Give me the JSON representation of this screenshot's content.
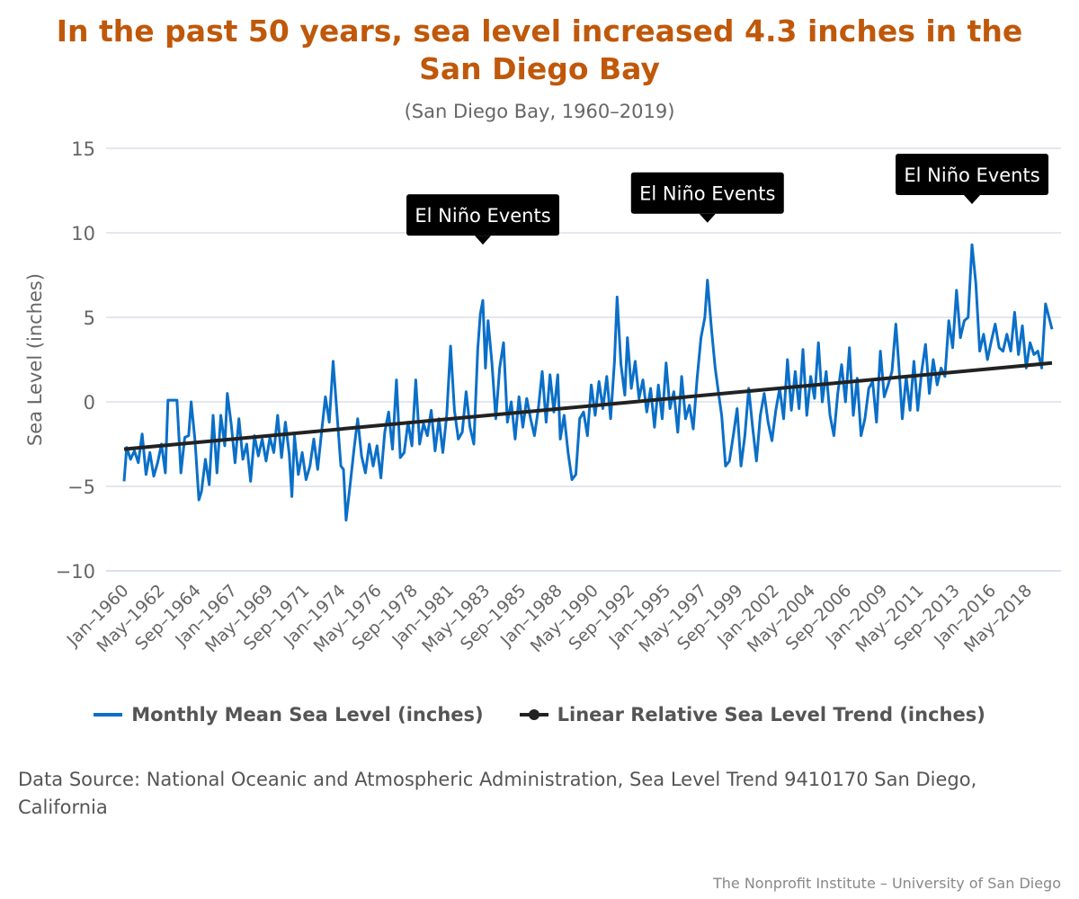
{
  "title": "In the past 50 years, sea level increased 4.3 inches in the San Diego Bay",
  "subtitle": "(San Diego Bay, 1960–2019)",
  "source_note": "Data Source: National Oceanic and Atmospheric Administration, Sea Level Trend 9410170 San Diego, California",
  "credit": "The Nonprofit Institute – University of San Diego",
  "colors": {
    "title": "#c0580a",
    "monthly_series": "#0a6fc8",
    "trend_series": "#222222",
    "grid": "#dddde8",
    "annotation_bg": "#000000"
  },
  "legend": {
    "placement": "bottom-center",
    "items": [
      {
        "label": "Monthly Mean Sea Level (inches)",
        "symbol": "line",
        "color": "#0a6fc8"
      },
      {
        "label": "Linear Relative Sea Level Trend (inches)",
        "symbol": "line-with-marker",
        "color": "#222222"
      }
    ]
  },
  "chart_data": {
    "type": "line",
    "title": "In the past 50 years, sea level increased 4.3 inches in the San Diego Bay",
    "subtitle": "(San Diego Bay, 1960–2019)",
    "ylabel": "Sea Level (inches)",
    "xlabel": "",
    "ylim": [
      -10,
      15
    ],
    "y_ticks": [
      -10,
      -5,
      0,
      5,
      10,
      15
    ],
    "grid": "horizontal",
    "x_range": [
      "Jan-1960",
      "Dec-2019"
    ],
    "x_tick_labels": [
      "Jan-1960",
      "May-1962",
      "Sep-1964",
      "Jan-1967",
      "May-1969",
      "Sep-1971",
      "Jan-1974",
      "May-1976",
      "Sep-1978",
      "Jan-1981",
      "May-1983",
      "Sep-1985",
      "Jan-1988",
      "May-1990",
      "Sep-1992",
      "Jan-1995",
      "May-1997",
      "Sep-1999",
      "Jan-2002",
      "May-2004",
      "Sep-2006",
      "Jan-2009",
      "May-2011",
      "Sep-2013",
      "Jan-2016",
      "May-2018"
    ],
    "series": [
      {
        "name": "Monthly Mean Sea Level (inches)",
        "color": "#0a6fc8",
        "points": [
          [
            "Jan-1960",
            -4.7
          ],
          [
            "Mar-1960",
            -2.7
          ],
          [
            "Jun-1960",
            -3.4
          ],
          [
            "Sep-1960",
            -2.9
          ],
          [
            "Dec-1960",
            -3.6
          ],
          [
            "Mar-1961",
            -1.9
          ],
          [
            "Jun-1961",
            -4.3
          ],
          [
            "Sep-1961",
            -3.0
          ],
          [
            "Dec-1961",
            -4.4
          ],
          [
            "Mar-1962",
            -3.6
          ],
          [
            "Jun-1962",
            -2.5
          ],
          [
            "Sep-1962",
            -4.2
          ],
          [
            "Nov-1962",
            0.1
          ],
          [
            "Jan-1963",
            0.1
          ],
          [
            "Mar-1963",
            0.1
          ],
          [
            "Jun-1963",
            0.1
          ],
          [
            "Sep-1963",
            -4.2
          ],
          [
            "Dec-1963",
            -2.1
          ],
          [
            "Mar-1964",
            -2.0
          ],
          [
            "May-1964",
            0.0
          ],
          [
            "Aug-1964",
            -2.3
          ],
          [
            "Nov-1964",
            -5.8
          ],
          [
            "Jan-1965",
            -5.3
          ],
          [
            "Apr-1965",
            -3.4
          ],
          [
            "Jul-1965",
            -4.9
          ],
          [
            "Oct-1965",
            -0.8
          ],
          [
            "Jan-1966",
            -4.2
          ],
          [
            "Apr-1966",
            -0.8
          ],
          [
            "Jul-1966",
            -2.6
          ],
          [
            "Sep-1966",
            0.5
          ],
          [
            "Dec-1966",
            -1.3
          ],
          [
            "Mar-1967",
            -3.6
          ],
          [
            "Jun-1967",
            -1.0
          ],
          [
            "Sep-1967",
            -3.4
          ],
          [
            "Dec-1967",
            -2.5
          ],
          [
            "Mar-1968",
            -4.7
          ],
          [
            "Jun-1968",
            -2.0
          ],
          [
            "Sep-1968",
            -3.2
          ],
          [
            "Dec-1968",
            -2.2
          ],
          [
            "Mar-1969",
            -3.5
          ],
          [
            "Jun-1969",
            -2.1
          ],
          [
            "Sep-1969",
            -3.0
          ],
          [
            "Dec-1969",
            -0.8
          ],
          [
            "Mar-1970",
            -3.3
          ],
          [
            "Jun-1970",
            -1.2
          ],
          [
            "Sep-1970",
            -3.1
          ],
          [
            "Nov-1970",
            -5.6
          ],
          [
            "Jan-1971",
            -2.0
          ],
          [
            "Apr-1971",
            -4.3
          ],
          [
            "Jul-1971",
            -3.0
          ],
          [
            "Oct-1971",
            -4.6
          ],
          [
            "Jan-1972",
            -3.8
          ],
          [
            "Apr-1972",
            -2.2
          ],
          [
            "Jul-1972",
            -4.0
          ],
          [
            "Oct-1972",
            -1.8
          ],
          [
            "Jan-1973",
            0.3
          ],
          [
            "Apr-1973",
            -1.2
          ],
          [
            "Jul-1973",
            2.4
          ],
          [
            "Oct-1973",
            -0.7
          ],
          [
            "Jan-1974",
            -3.8
          ],
          [
            "Mar-1974",
            -4.0
          ],
          [
            "May-1974",
            -7.0
          ],
          [
            "Aug-1974",
            -5.0
          ],
          [
            "Nov-1974",
            -2.9
          ],
          [
            "Feb-1975",
            -1.0
          ],
          [
            "May-1975",
            -3.2
          ],
          [
            "Aug-1975",
            -4.2
          ],
          [
            "Nov-1975",
            -2.5
          ],
          [
            "Feb-1976",
            -3.8
          ],
          [
            "May-1976",
            -2.6
          ],
          [
            "Aug-1976",
            -4.5
          ],
          [
            "Nov-1976",
            -1.8
          ],
          [
            "Feb-1977",
            -0.6
          ],
          [
            "May-1977",
            -2.8
          ],
          [
            "Aug-1977",
            1.3
          ],
          [
            "Nov-1977",
            -3.3
          ],
          [
            "Feb-1978",
            -3.0
          ],
          [
            "May-1978",
            -1.2
          ],
          [
            "Aug-1978",
            -2.6
          ],
          [
            "Nov-1978",
            1.3
          ],
          [
            "Feb-1979",
            -2.5
          ],
          [
            "May-1979",
            -1.3
          ],
          [
            "Aug-1979",
            -2.0
          ],
          [
            "Nov-1979",
            -0.5
          ],
          [
            "Feb-1980",
            -2.9
          ],
          [
            "May-1980",
            -1.0
          ],
          [
            "Aug-1980",
            -3.0
          ],
          [
            "Nov-1980",
            -0.8
          ],
          [
            "Feb-1981",
            3.3
          ],
          [
            "May-1981",
            -0.5
          ],
          [
            "Aug-1981",
            -2.2
          ],
          [
            "Nov-1981",
            -1.8
          ],
          [
            "Feb-1982",
            0.6
          ],
          [
            "May-1982",
            -1.5
          ],
          [
            "Aug-1982",
            -2.5
          ],
          [
            "Nov-1982",
            3.1
          ],
          [
            "Jan-1983",
            5.2
          ],
          [
            "Mar-1983",
            6.0
          ],
          [
            "May-1983",
            2.0
          ],
          [
            "Jul-1983",
            4.8
          ],
          [
            "Oct-1983",
            2.3
          ],
          [
            "Jan-1984",
            -1.0
          ],
          [
            "Apr-1984",
            2.0
          ],
          [
            "Jul-1984",
            3.5
          ],
          [
            "Oct-1984",
            -1.2
          ],
          [
            "Jan-1985",
            0.0
          ],
          [
            "Apr-1985",
            -2.2
          ],
          [
            "Jul-1985",
            0.3
          ],
          [
            "Oct-1985",
            -1.5
          ],
          [
            "Jan-1986",
            0.2
          ],
          [
            "Apr-1986",
            -1.0
          ],
          [
            "Jul-1986",
            -2.0
          ],
          [
            "Oct-1986",
            -0.4
          ],
          [
            "Jan-1987",
            1.8
          ],
          [
            "Apr-1987",
            -1.2
          ],
          [
            "Jul-1987",
            1.6
          ],
          [
            "Oct-1987",
            -0.6
          ],
          [
            "Jan-1988",
            1.6
          ],
          [
            "Mar-1988",
            -2.2
          ],
          [
            "Jun-1988",
            -0.8
          ],
          [
            "Sep-1988",
            -3.0
          ],
          [
            "Dec-1988",
            -4.6
          ],
          [
            "Mar-1989",
            -4.3
          ],
          [
            "Jun-1989",
            -1.0
          ],
          [
            "Sep-1989",
            -0.6
          ],
          [
            "Dec-1989",
            -2.0
          ],
          [
            "Mar-1990",
            1.0
          ],
          [
            "Jun-1990",
            -0.8
          ],
          [
            "Sep-1990",
            1.2
          ],
          [
            "Dec-1990",
            -0.4
          ],
          [
            "Mar-1991",
            1.5
          ],
          [
            "Jun-1991",
            -1.0
          ],
          [
            "Sep-1991",
            2.4
          ],
          [
            "Nov-1991",
            6.2
          ],
          [
            "Feb-1992",
            2.2
          ],
          [
            "May-1992",
            0.4
          ],
          [
            "Jul-1992",
            3.8
          ],
          [
            "Oct-1992",
            0.8
          ],
          [
            "Jan-1993",
            2.4
          ],
          [
            "Apr-1993",
            0.2
          ],
          [
            "Jul-1993",
            1.3
          ],
          [
            "Oct-1993",
            -0.6
          ],
          [
            "Jan-1994",
            0.8
          ],
          [
            "Apr-1994",
            -1.5
          ],
          [
            "Jul-1994",
            1.0
          ],
          [
            "Oct-1994",
            -1.0
          ],
          [
            "Jan-1995",
            2.3
          ],
          [
            "Apr-1995",
            -0.4
          ],
          [
            "Jul-1995",
            0.6
          ],
          [
            "Oct-1995",
            -1.8
          ],
          [
            "Jan-1996",
            1.5
          ],
          [
            "Apr-1996",
            -1.0
          ],
          [
            "Jul-1996",
            -0.2
          ],
          [
            "Oct-1996",
            -1.6
          ],
          [
            "Jan-1997",
            1.4
          ],
          [
            "Apr-1997",
            3.8
          ],
          [
            "Jul-1997",
            5.0
          ],
          [
            "Sep-1997",
            7.2
          ],
          [
            "Dec-1997",
            4.4
          ],
          [
            "Mar-1998",
            2.0
          ],
          [
            "Jun-1998",
            0.3
          ],
          [
            "Aug-1998",
            -0.8
          ],
          [
            "Nov-1998",
            -3.8
          ],
          [
            "Feb-1999",
            -3.5
          ],
          [
            "May-1999",
            -2.0
          ],
          [
            "Aug-1999",
            -0.4
          ],
          [
            "Nov-1999",
            -3.8
          ],
          [
            "Feb-2000",
            -2.0
          ],
          [
            "May-2000",
            0.8
          ],
          [
            "Aug-2000",
            -1.5
          ],
          [
            "Nov-2000",
            -3.5
          ],
          [
            "Feb-2001",
            -0.8
          ],
          [
            "May-2001",
            0.5
          ],
          [
            "Aug-2001",
            -1.2
          ],
          [
            "Nov-2001",
            -2.3
          ],
          [
            "Feb-2002",
            -0.5
          ],
          [
            "May-2002",
            0.8
          ],
          [
            "Aug-2002",
            -1.0
          ],
          [
            "Nov-2002",
            2.5
          ],
          [
            "Feb-2003",
            -0.5
          ],
          [
            "May-2003",
            1.8
          ],
          [
            "Aug-2003",
            -0.4
          ],
          [
            "Nov-2003",
            3.1
          ],
          [
            "Feb-2004",
            -0.8
          ],
          [
            "May-2004",
            1.5
          ],
          [
            "Aug-2004",
            0.2
          ],
          [
            "Nov-2004",
            3.5
          ],
          [
            "Feb-2005",
            0.0
          ],
          [
            "May-2005",
            1.8
          ],
          [
            "Aug-2005",
            -0.8
          ],
          [
            "Nov-2005",
            -2.0
          ],
          [
            "Feb-2006",
            0.5
          ],
          [
            "May-2006",
            2.2
          ],
          [
            "Aug-2006",
            0.0
          ],
          [
            "Nov-2006",
            3.2
          ],
          [
            "Feb-2007",
            -0.8
          ],
          [
            "May-2007",
            1.4
          ],
          [
            "Aug-2007",
            -2.0
          ],
          [
            "Nov-2007",
            -1.0
          ],
          [
            "Feb-2008",
            0.8
          ],
          [
            "May-2008",
            1.2
          ],
          [
            "Aug-2008",
            -1.2
          ],
          [
            "Nov-2008",
            3.0
          ],
          [
            "Feb-2009",
            0.3
          ],
          [
            "May-2009",
            1.0
          ],
          [
            "Aug-2009",
            1.8
          ],
          [
            "Nov-2009",
            4.6
          ],
          [
            "Jan-2010",
            2.5
          ],
          [
            "Apr-2010",
            -1.0
          ],
          [
            "Jul-2010",
            1.5
          ],
          [
            "Oct-2010",
            -0.5
          ],
          [
            "Jan-2011",
            2.4
          ],
          [
            "Apr-2011",
            -0.5
          ],
          [
            "Jul-2011",
            1.8
          ],
          [
            "Oct-2011",
            3.4
          ],
          [
            "Jan-2012",
            0.5
          ],
          [
            "Apr-2012",
            2.5
          ],
          [
            "Jul-2012",
            1.0
          ],
          [
            "Oct-2012",
            2.0
          ],
          [
            "Jan-2013",
            1.5
          ],
          [
            "Apr-2013",
            4.8
          ],
          [
            "Jul-2013",
            3.2
          ],
          [
            "Oct-2013",
            6.6
          ],
          [
            "Jan-2014",
            3.8
          ],
          [
            "Apr-2014",
            4.8
          ],
          [
            "Jul-2014",
            5.0
          ],
          [
            "Oct-2014",
            9.3
          ],
          [
            "Jan-2015",
            7.0
          ],
          [
            "Apr-2015",
            3.0
          ],
          [
            "Jul-2015",
            4.0
          ],
          [
            "Oct-2015",
            2.5
          ],
          [
            "Jan-2016",
            3.6
          ],
          [
            "Apr-2016",
            4.6
          ],
          [
            "Jul-2016",
            3.2
          ],
          [
            "Oct-2016",
            3.0
          ],
          [
            "Jan-2017",
            4.0
          ],
          [
            "Apr-2017",
            3.0
          ],
          [
            "Jul-2017",
            5.3
          ],
          [
            "Oct-2017",
            2.8
          ],
          [
            "Jan-2018",
            4.5
          ],
          [
            "Apr-2018",
            2.0
          ],
          [
            "Jul-2018",
            3.5
          ],
          [
            "Oct-2018",
            2.8
          ],
          [
            "Jan-2019",
            3.0
          ],
          [
            "Apr-2019",
            2.0
          ],
          [
            "Jul-2019",
            5.8
          ],
          [
            "Dec-2019",
            4.3
          ]
        ]
      },
      {
        "name": "Linear Relative Sea Level Trend (inches)",
        "color": "#222222",
        "points": [
          [
            "Jan-1960",
            -2.8
          ],
          [
            "Dec-2019",
            2.3
          ]
        ]
      }
    ],
    "annotations": [
      {
        "text": "El Niño Events",
        "x": "Mar-1983",
        "y": 9.3
      },
      {
        "text": "El Niño Events",
        "x": "Sep-1997",
        "y": 10.6
      },
      {
        "text": "El Niño Events",
        "x": "Oct-2014",
        "y": 11.7
      }
    ]
  }
}
